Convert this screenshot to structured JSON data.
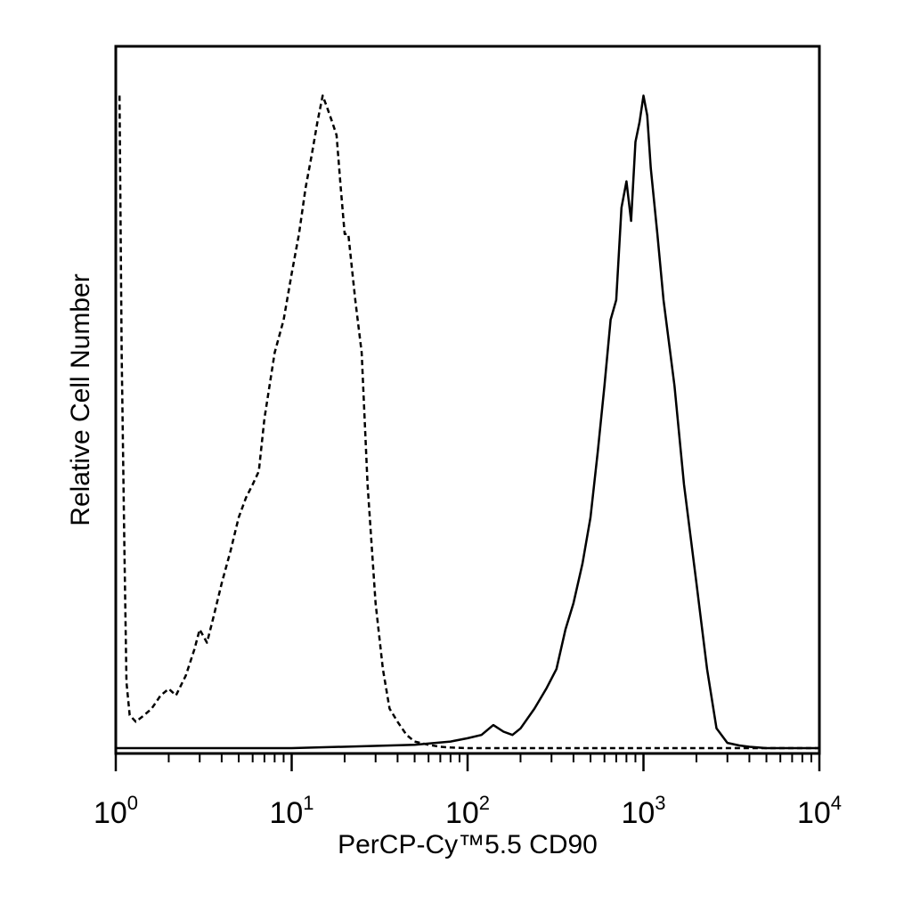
{
  "chart_data": {
    "type": "line",
    "title": "",
    "xlabel": "PerCP-Cy™5.5 CD90",
    "ylabel": "Relative Cell Number",
    "x_scale": "log",
    "xlim": [
      1,
      10000
    ],
    "ylim": [
      0,
      1
    ],
    "grid": false,
    "legend": "none",
    "x_ticks": [
      {
        "value": 1,
        "base": "10",
        "exp": "0"
      },
      {
        "value": 10,
        "base": "10",
        "exp": "1"
      },
      {
        "value": 100,
        "base": "10",
        "exp": "2"
      },
      {
        "value": 1000,
        "base": "10",
        "exp": "3"
      },
      {
        "value": 10000,
        "base": "10",
        "exp": "4"
      }
    ],
    "series": [
      {
        "style": "dashed",
        "color": "#000000",
        "x": [
          1.05,
          1.08,
          1.12,
          1.15,
          1.2,
          1.3,
          1.45,
          1.6,
          1.8,
          2.0,
          2.2,
          2.5,
          2.8,
          3.0,
          3.3,
          3.6,
          4.0,
          4.5,
          5.0,
          5.5,
          6.0,
          6.5,
          7.0,
          8.0,
          9.0,
          10,
          11,
          12,
          13,
          14,
          15,
          16,
          17,
          18,
          19,
          20,
          21,
          23,
          25,
          27,
          30,
          33,
          36,
          40,
          45,
          50,
          60,
          70,
          80,
          100,
          200,
          500,
          1000,
          2000,
          5000,
          10000
        ],
        "y": [
          0.99,
          0.6,
          0.3,
          0.1,
          0.05,
          0.04,
          0.05,
          0.06,
          0.08,
          0.09,
          0.08,
          0.11,
          0.15,
          0.18,
          0.16,
          0.2,
          0.25,
          0.3,
          0.35,
          0.38,
          0.4,
          0.42,
          0.5,
          0.6,
          0.65,
          0.72,
          0.78,
          0.85,
          0.9,
          0.95,
          0.99,
          0.97,
          0.95,
          0.93,
          0.85,
          0.78,
          0.78,
          0.68,
          0.6,
          0.4,
          0.22,
          0.12,
          0.06,
          0.04,
          0.02,
          0.01,
          0.005,
          0.002,
          0.001,
          0.0,
          0.0,
          0.0,
          0.0,
          0.0,
          0.0,
          0.0
        ]
      },
      {
        "style": "solid",
        "color": "#000000",
        "x": [
          1,
          10,
          50,
          80,
          100,
          120,
          140,
          160,
          180,
          200,
          240,
          280,
          320,
          360,
          400,
          450,
          500,
          550,
          600,
          650,
          700,
          750,
          800,
          850,
          900,
          950,
          1000,
          1050,
          1100,
          1200,
          1300,
          1500,
          1700,
          2000,
          2300,
          2600,
          3000,
          3500,
          4000,
          5000,
          10000
        ],
        "y": [
          0.0,
          0.0,
          0.005,
          0.01,
          0.015,
          0.02,
          0.035,
          0.025,
          0.02,
          0.03,
          0.06,
          0.09,
          0.12,
          0.18,
          0.22,
          0.28,
          0.35,
          0.45,
          0.55,
          0.65,
          0.68,
          0.82,
          0.86,
          0.8,
          0.92,
          0.95,
          0.99,
          0.96,
          0.88,
          0.78,
          0.68,
          0.55,
          0.4,
          0.25,
          0.12,
          0.03,
          0.008,
          0.004,
          0.002,
          0.0,
          0.0
        ]
      }
    ]
  }
}
